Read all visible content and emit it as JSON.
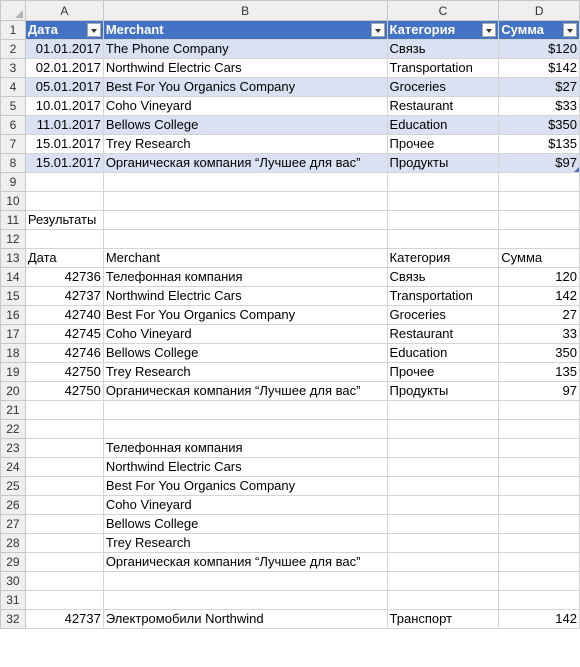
{
  "columns": [
    "A",
    "B",
    "C",
    "D"
  ],
  "rows": [
    "1",
    "2",
    "3",
    "4",
    "5",
    "6",
    "7",
    "8",
    "9",
    "10",
    "11",
    "12",
    "13",
    "14",
    "15",
    "16",
    "17",
    "18",
    "19",
    "20",
    "21",
    "22",
    "23",
    "24",
    "25",
    "26",
    "27",
    "28",
    "29",
    "30",
    "31",
    "32"
  ],
  "table": {
    "headers": [
      "Дата",
      "Merchant",
      "Категория",
      "Сумма"
    ],
    "rows": [
      [
        "01.01.2017",
        "The Phone Company",
        "Связь",
        "$120"
      ],
      [
        "02.01.2017",
        "Northwind Electric Cars",
        "Transportation",
        "$142"
      ],
      [
        "05.01.2017",
        "Best For You Organics Company",
        "Groceries",
        "$27"
      ],
      [
        "10.01.2017",
        "Coho Vineyard",
        "Restaurant",
        "$33"
      ],
      [
        "11.01.2017",
        "Bellows College",
        "Education",
        "$350"
      ],
      [
        "15.01.2017",
        "Trey Research",
        "Прочее",
        "$135"
      ],
      [
        "15.01.2017",
        "Органическая компания “Лучшее для вас”",
        "Продукты",
        "$97"
      ]
    ]
  },
  "results": {
    "label": "Результаты",
    "headers": [
      "Дата",
      "Merchant",
      "Категория",
      "Сумма"
    ],
    "rows": [
      [
        "42736",
        "Телефонная компания",
        "Связь",
        "120"
      ],
      [
        "42737",
        "Northwind Electric Cars",
        "Transportation",
        "142"
      ],
      [
        "42740",
        "Best For You Organics Company",
        "Groceries",
        "27"
      ],
      [
        "42745",
        "Coho Vineyard",
        "Restaurant",
        "33"
      ],
      [
        "42746",
        "Bellows College",
        "Education",
        "350"
      ],
      [
        "42750",
        "Trey Research",
        "Прочее",
        "135"
      ],
      [
        "42750",
        "Органическая компания “Лучшее для вас”",
        "Продукты",
        "97"
      ]
    ]
  },
  "merchant_list": [
    "Телефонная компания",
    "Northwind Electric Cars",
    "Best For You Organics Company",
    "Coho Vineyard",
    "Bellows College",
    "Trey Research",
    "Органическая компания “Лучшее для вас”"
  ],
  "lookup_row": [
    "42737",
    "Электромобили Northwind",
    "Транспорт",
    "142"
  ],
  "colors": {
    "table_header": "#4472c4",
    "table_band": "#d9e1f2",
    "grid": "#d4d4d4",
    "heading_bg": "#efefef"
  }
}
